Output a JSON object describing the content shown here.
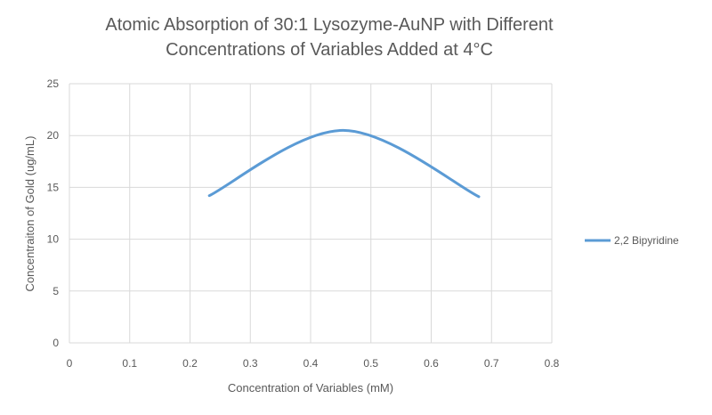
{
  "chart_data": {
    "type": "line",
    "title_lines": [
      "Atomic Absorption of 30:1 Lysozyme-AuNP with Different",
      "Concentrations of Variables Added at 4°C"
    ],
    "xlabel": "Concentration of Variables (mM)",
    "ylabel": "Concentraiton of Gold (ug/mL)",
    "xlim": [
      0,
      0.8
    ],
    "ylim": [
      0,
      25
    ],
    "xticks": [
      "0",
      "0.1",
      "0.2",
      "0.3",
      "0.4",
      "0.5",
      "0.6",
      "0.7",
      "0.8"
    ],
    "yticks": [
      "0",
      "5",
      "10",
      "15",
      "20",
      "25"
    ],
    "grid": true,
    "smooth": true,
    "legend_position": "right",
    "series": [
      {
        "name": "2,2 Bipyridine",
        "color": "#5B9BD5",
        "x": [
          0.232,
          0.454,
          0.679
        ],
        "y": [
          14.2,
          20.5,
          14.1
        ]
      }
    ]
  }
}
